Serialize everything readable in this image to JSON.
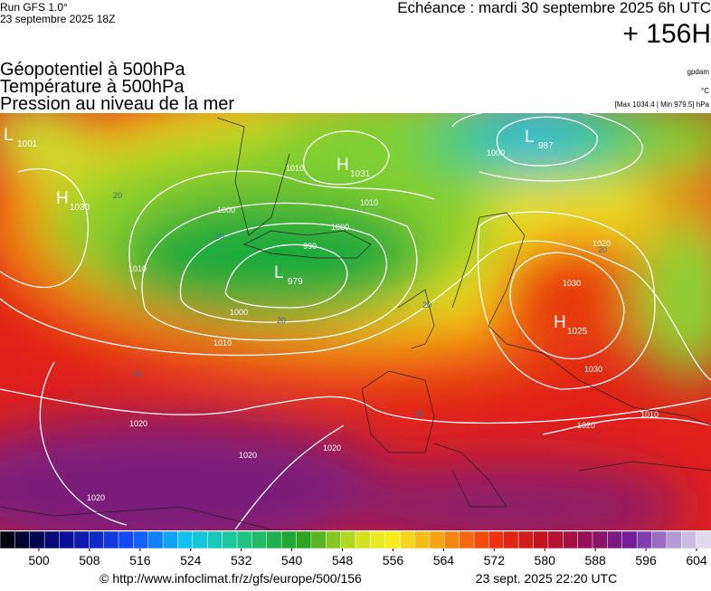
{
  "header": {
    "run": "Run GFS 1.0°",
    "run_date": "23 septembre 2025 18Z",
    "echeance": "Echéance : mardi 30 septembre 2025 6h UTC",
    "lead": "+ 156H",
    "layers": [
      "Géopotentiel à 500hPa",
      "Température à 500hPa",
      "Pression au niveau de la mer"
    ],
    "units": [
      "gpdam",
      "°C",
      "[Max 1034.4 | Min 979.5] hPa"
    ]
  },
  "map": {
    "centers": [
      {
        "type": "L",
        "value": "1001"
      },
      {
        "type": "H",
        "value": "1030"
      },
      {
        "type": "H",
        "value": "1031"
      },
      {
        "type": "L",
        "value": "987"
      },
      {
        "type": "L",
        "value": "979"
      },
      {
        "type": "H",
        "value": "1025"
      }
    ],
    "isobar_labels": [
      "1010",
      "1000",
      "1010",
      "1000",
      "990",
      "1000",
      "1010",
      "1000",
      "1020",
      "1030",
      "1020",
      "1020",
      "1020",
      "1020",
      "1020",
      "1010",
      "1030",
      "1010"
    ],
    "temp_labels": [
      "20",
      "20",
      "20",
      "20",
      "20",
      "10",
      "10"
    ]
  },
  "colorbar": {
    "ticks": [
      500,
      508,
      516,
      524,
      532,
      540,
      548,
      556,
      564,
      572,
      580,
      588,
      596,
      604
    ]
  },
  "footer": {
    "url": "© http://www.infoclimat.fr/z/gfs/europe/500/156",
    "timestamp": "23 sept. 2025 22:20 UTC"
  }
}
